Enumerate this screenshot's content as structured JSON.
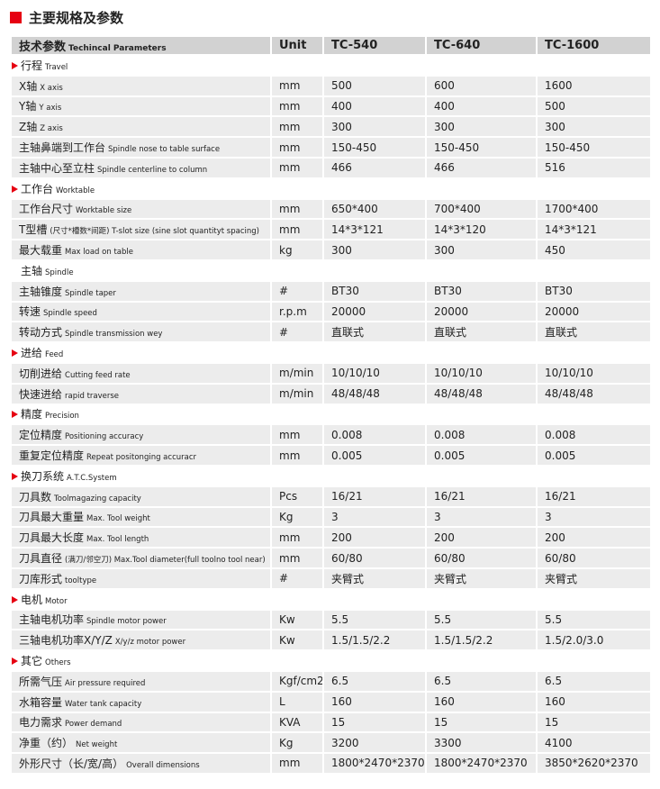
{
  "title": "主要规格及参数",
  "accent": "#e60012",
  "header": {
    "param_zh": "技术参数",
    "param_en": "Techincal Parameters",
    "unit": "Unit",
    "models": [
      "TC-540",
      "TC-640",
      "TC-1600"
    ]
  },
  "sections": [
    {
      "zh": "行程",
      "en": "Travel",
      "marker": true,
      "rows": [
        {
          "zh": "X轴",
          "en": "X axis",
          "unit": "mm",
          "v": [
            "500",
            "600",
            "1600"
          ]
        },
        {
          "zh": "Y轴",
          "en": "Y axis",
          "unit": "mm",
          "v": [
            "400",
            "400",
            "500"
          ]
        },
        {
          "zh": "Z轴",
          "en": "Z axis",
          "unit": "mm",
          "v": [
            "300",
            "300",
            "300"
          ]
        },
        {
          "zh": "主轴鼻端到工作台",
          "en": "Spindle nose to table surface",
          "unit": "mm",
          "v": [
            "150-450",
            "150-450",
            "150-450"
          ]
        },
        {
          "zh": "主轴中心至立柱",
          "en": "Spindle centerline to column",
          "unit": "mm",
          "v": [
            "466",
            "466",
            "516"
          ]
        }
      ]
    },
    {
      "zh": "工作台",
      "en": "Worktable",
      "marker": true,
      "rows": [
        {
          "zh": "工作台尺寸",
          "en": "Worktable size",
          "unit": "mm",
          "v": [
            "650*400",
            "700*400",
            "1700*400"
          ]
        },
        {
          "zh": "T型槽",
          "en": "(尺寸*槽数*间距) T-slot size (sine slot quantityt spacing)",
          "unit": "mm",
          "v": [
            "14*3*121",
            "14*3*120",
            "14*3*121"
          ]
        },
        {
          "zh": "最大载重",
          "en": "Max load on table",
          "unit": "kg",
          "v": [
            "300",
            "300",
            "450"
          ]
        }
      ]
    },
    {
      "zh": "主轴",
      "en": "Spindle",
      "marker": false,
      "rows": [
        {
          "zh": "主轴锥度",
          "en": "Spindle taper",
          "unit": "#",
          "v": [
            "BT30",
            "BT30",
            "BT30"
          ]
        },
        {
          "zh": "转速",
          "en": "Spindle speed",
          "unit": "r.p.m",
          "v": [
            "20000",
            "20000",
            "20000"
          ]
        },
        {
          "zh": "转动方式",
          "en": "Spindle transmission wey",
          "unit": "#",
          "v": [
            "直联式",
            "直联式",
            "直联式"
          ]
        }
      ]
    },
    {
      "zh": "进给",
      "en": "Feed",
      "marker": true,
      "rows": [
        {
          "zh": "切削进给",
          "en": "Cutting feed rate",
          "unit": "m/min",
          "v": [
            "10/10/10",
            "10/10/10",
            "10/10/10"
          ]
        },
        {
          "zh": "快速进给",
          "en": "rapid traverse",
          "unit": "m/min",
          "v": [
            "48/48/48",
            "48/48/48",
            "48/48/48"
          ]
        }
      ]
    },
    {
      "zh": "精度",
      "en": "Precision",
      "marker": true,
      "rows": [
        {
          "zh": "定位精度",
          "en": "Positioning accuracy",
          "unit": "mm",
          "v": [
            "0.008",
            "0.008",
            "0.008"
          ]
        },
        {
          "zh": "重复定位精度",
          "en": "Repeat positonging accuracr",
          "unit": "mm",
          "v": [
            "0.005",
            "0.005",
            "0.005"
          ]
        }
      ]
    },
    {
      "zh": "换刀系统",
      "en": "A.T.C.System",
      "marker": true,
      "rows": [
        {
          "zh": "刀具数",
          "en": "Toolmagazing capacity",
          "unit": "Pcs",
          "v": [
            "16/21",
            "16/21",
            "16/21"
          ]
        },
        {
          "zh": "刀具最大重量",
          "en": "Max. Tool weight",
          "unit": "Kg",
          "v": [
            "3",
            "3",
            "3"
          ]
        },
        {
          "zh": "刀具最大长度",
          "en": "Max. Tool length",
          "unit": "mm",
          "v": [
            "200",
            "200",
            "200"
          ]
        },
        {
          "zh": "刀具直径",
          "en": "(满刀/邻空刀) Max.Tool diameter(full toolno tool near)",
          "unit": "mm",
          "v": [
            "60/80",
            "60/80",
            "60/80"
          ]
        },
        {
          "zh": "刀库形式",
          "en": "tooltype",
          "unit": "#",
          "v": [
            "夹臂式",
            "夹臂式",
            "夹臂式"
          ]
        }
      ]
    },
    {
      "zh": "电机",
      "en": "Motor",
      "marker": true,
      "rows": [
        {
          "zh": "主轴电机功率",
          "en": "Spindle motor power",
          "unit": "Kw",
          "v": [
            "5.5",
            "5.5",
            "5.5"
          ]
        },
        {
          "zh": "三轴电机功率X/Y/Z",
          "en": "X/y/z motor power",
          "unit": "Kw",
          "v": [
            "1.5/1.5/2.2",
            "1.5/1.5/2.2",
            "1.5/2.0/3.0"
          ]
        }
      ]
    },
    {
      "zh": "其它",
      "en": "Others",
      "marker": true,
      "rows": [
        {
          "zh": "所需气压",
          "en": "Air pressure required",
          "unit": "Kgf/cm2",
          "v": [
            "6.5",
            "6.5",
            "6.5"
          ]
        },
        {
          "zh": "水箱容量",
          "en": "Water tank capacity",
          "unit": "L",
          "v": [
            "160",
            "160",
            "160"
          ]
        },
        {
          "zh": "电力需求",
          "en": "Power demand",
          "unit": "KVA",
          "v": [
            "15",
            "15",
            "15"
          ]
        },
        {
          "zh": "净重（约）",
          "en": "Net weight",
          "unit": "Kg",
          "v": [
            "3200",
            "3300",
            "4100"
          ]
        },
        {
          "zh": "外形尺寸（长/宽/高）",
          "en": "Overall dimensions",
          "unit": "mm",
          "v": [
            "1800*2470*2370",
            "1800*2470*2370",
            "3850*2620*2370"
          ]
        }
      ]
    }
  ]
}
